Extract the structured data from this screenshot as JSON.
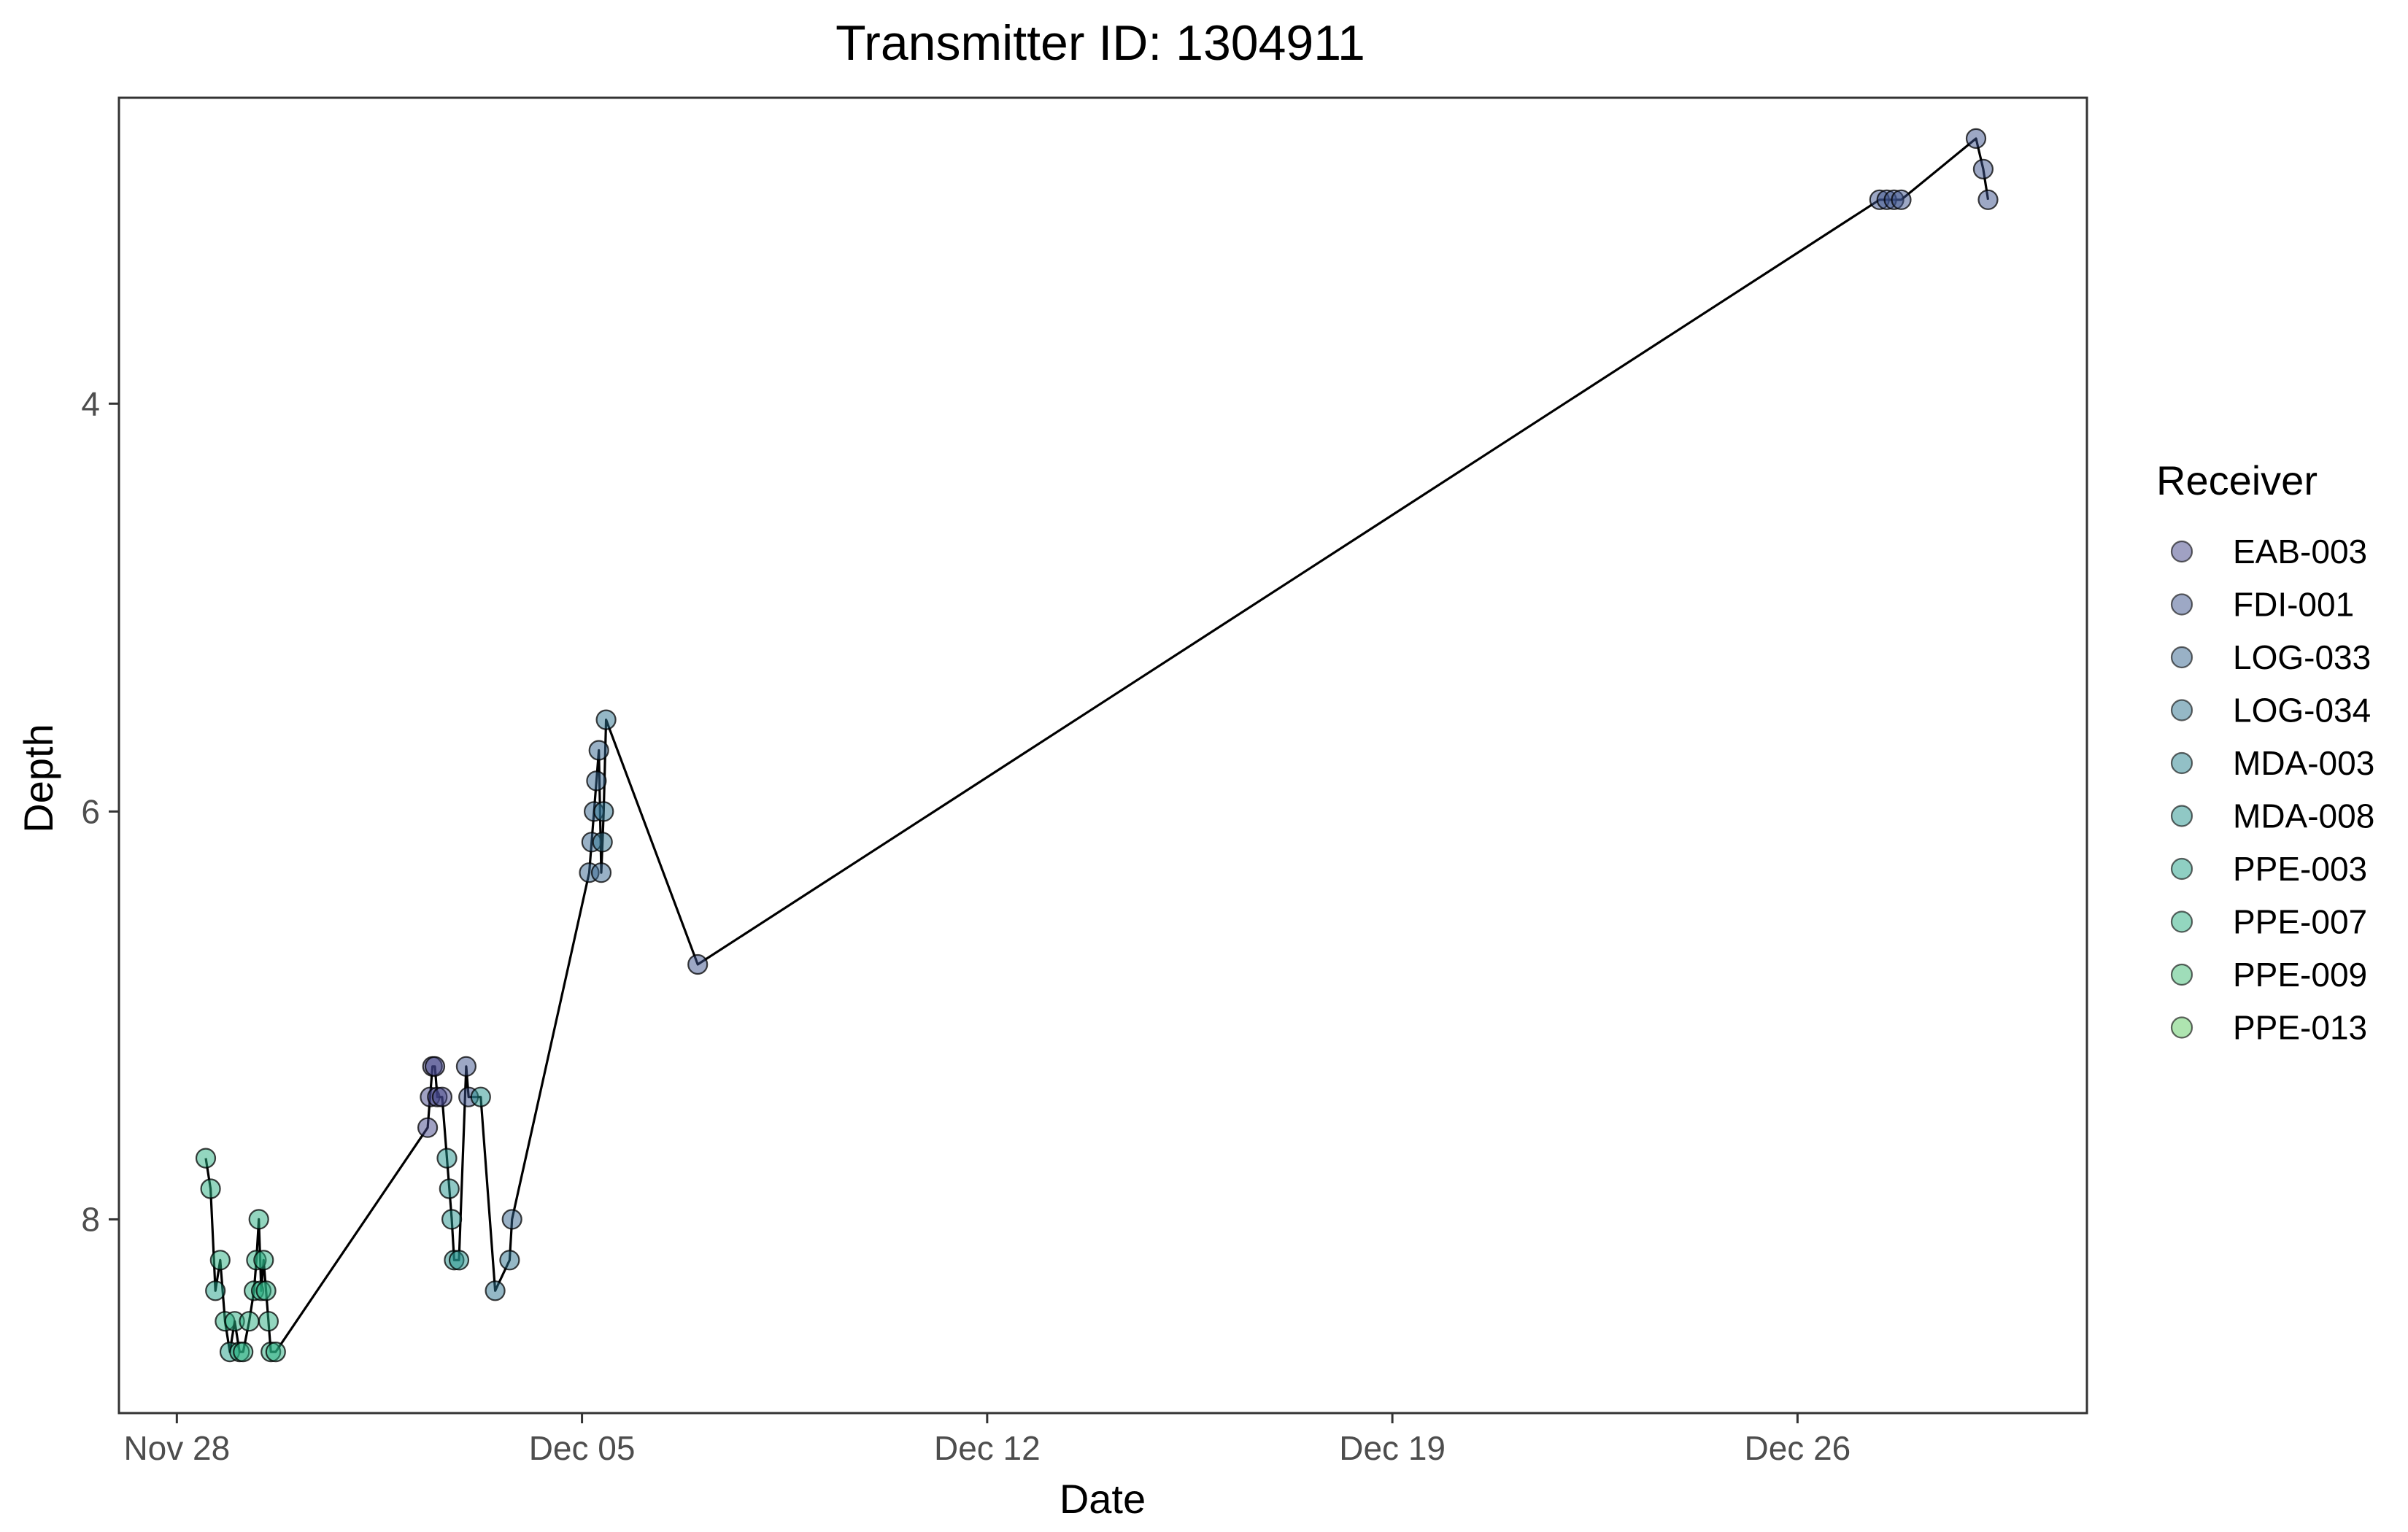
{
  "chart_data": {
    "type": "scatter",
    "title": "Transmitter ID: 1304911",
    "xlabel": "Date",
    "ylabel": "Depth",
    "y_reversed": true,
    "xlim": [
      "2023-11-27",
      "2023-12-31"
    ],
    "ylim": [
      2.5,
      8.95
    ],
    "x_ticks": [
      {
        "value": "2023-11-28",
        "label": "Nov 28"
      },
      {
        "value": "2023-12-05",
        "label": "Dec 05"
      },
      {
        "value": "2023-12-12",
        "label": "Dec 12"
      },
      {
        "value": "2023-12-19",
        "label": "Dec 19"
      },
      {
        "value": "2023-12-26",
        "label": "Dec 26"
      }
    ],
    "y_ticks": [
      {
        "value": 4,
        "label": "4"
      },
      {
        "value": 6,
        "label": "6"
      },
      {
        "value": 8,
        "label": "8"
      }
    ],
    "grid": false,
    "line_connects_points": true,
    "legend": {
      "title": "Receiver",
      "position": "right",
      "entries": [
        {
          "name": "EAB-003",
          "color": "#414487"
        },
        {
          "name": "FDI-001",
          "color": "#3b528b"
        },
        {
          "name": "LOG-033",
          "color": "#33638d"
        },
        {
          "name": "LOG-034",
          "color": "#2c728e"
        },
        {
          "name": "MDA-003",
          "color": "#26828e"
        },
        {
          "name": "MDA-008",
          "color": "#21918c"
        },
        {
          "name": "PPE-003",
          "color": "#1fa088"
        },
        {
          "name": "PPE-007",
          "color": "#28ae80"
        },
        {
          "name": "PPE-009",
          "color": "#3fbc73"
        },
        {
          "name": "PPE-013",
          "color": "#5ec962"
        }
      ]
    },
    "points": [
      {
        "x": "2023-11-28 12:00",
        "y": 7.7,
        "receiver": "PPE-007"
      },
      {
        "x": "2023-11-28 14:00",
        "y": 7.85,
        "receiver": "PPE-007"
      },
      {
        "x": "2023-11-28 16:00",
        "y": 8.35,
        "receiver": "PPE-003"
      },
      {
        "x": "2023-11-28 18:00",
        "y": 8.2,
        "receiver": "PPE-007"
      },
      {
        "x": "2023-11-28 20:00",
        "y": 8.5,
        "receiver": "PPE-007"
      },
      {
        "x": "2023-11-28 22:00",
        "y": 8.65,
        "receiver": "PPE-003"
      },
      {
        "x": "2023-11-29 00:00",
        "y": 8.5,
        "receiver": "PPE-007"
      },
      {
        "x": "2023-11-29 02:00",
        "y": 8.65,
        "receiver": "PPE-007"
      },
      {
        "x": "2023-11-29 03:30",
        "y": 8.65,
        "receiver": "PPE-007"
      },
      {
        "x": "2023-11-29 06:00",
        "y": 8.5,
        "receiver": "PPE-007"
      },
      {
        "x": "2023-11-29 08:00",
        "y": 8.35,
        "receiver": "PPE-007"
      },
      {
        "x": "2023-11-29 09:00",
        "y": 8.2,
        "receiver": "PPE-007"
      },
      {
        "x": "2023-11-29 10:00",
        "y": 8.0,
        "receiver": "PPE-007"
      },
      {
        "x": "2023-11-29 11:00",
        "y": 8.35,
        "receiver": "PPE-007"
      },
      {
        "x": "2023-11-29 12:00",
        "y": 8.2,
        "receiver": "PPE-007"
      },
      {
        "x": "2023-11-29 13:00",
        "y": 8.35,
        "receiver": "PPE-007"
      },
      {
        "x": "2023-11-29 14:00",
        "y": 8.5,
        "receiver": "PPE-007"
      },
      {
        "x": "2023-11-29 15:00",
        "y": 8.65,
        "receiver": "PPE-007"
      },
      {
        "x": "2023-11-29 17:00",
        "y": 8.65,
        "receiver": "PPE-007"
      },
      {
        "x": "2023-12-02 08:00",
        "y": 7.55,
        "receiver": "EAB-003"
      },
      {
        "x": "2023-12-02 09:00",
        "y": 7.4,
        "receiver": "EAB-003"
      },
      {
        "x": "2023-12-02 10:00",
        "y": 7.25,
        "receiver": "EAB-003"
      },
      {
        "x": "2023-12-02 11:00",
        "y": 7.25,
        "receiver": "EAB-003"
      },
      {
        "x": "2023-12-02 12:00",
        "y": 7.4,
        "receiver": "EAB-003"
      },
      {
        "x": "2023-12-02 14:00",
        "y": 7.4,
        "receiver": "EAB-003"
      },
      {
        "x": "2023-12-02 16:00",
        "y": 7.7,
        "receiver": "MDA-008"
      },
      {
        "x": "2023-12-02 17:00",
        "y": 7.85,
        "receiver": "MDA-008"
      },
      {
        "x": "2023-12-02 18:00",
        "y": 8.0,
        "receiver": "MDA-008"
      },
      {
        "x": "2023-12-02 19:00",
        "y": 8.2,
        "receiver": "MDA-008"
      },
      {
        "x": "2023-12-02 21:00",
        "y": 8.2,
        "receiver": "MDA-008"
      },
      {
        "x": "2023-12-03 00:00",
        "y": 7.25,
        "receiver": "FDI-001"
      },
      {
        "x": "2023-12-03 01:00",
        "y": 7.4,
        "receiver": "FDI-001"
      },
      {
        "x": "2023-12-03 06:00",
        "y": 7.4,
        "receiver": "MDA-008"
      },
      {
        "x": "2023-12-03 12:00",
        "y": 8.35,
        "receiver": "LOG-034"
      },
      {
        "x": "2023-12-03 18:00",
        "y": 8.2,
        "receiver": "LOG-034"
      },
      {
        "x": "2023-12-03 19:00",
        "y": 8.0,
        "receiver": "LOG-033"
      },
      {
        "x": "2023-12-05 03:00",
        "y": 6.3,
        "receiver": "LOG-033"
      },
      {
        "x": "2023-12-05 04:00",
        "y": 6.15,
        "receiver": "LOG-033"
      },
      {
        "x": "2023-12-05 05:00",
        "y": 6.0,
        "receiver": "LOG-033"
      },
      {
        "x": "2023-12-05 06:00",
        "y": 5.85,
        "receiver": "LOG-033"
      },
      {
        "x": "2023-12-05 07:00",
        "y": 5.7,
        "receiver": "LOG-033"
      },
      {
        "x": "2023-12-05 08:00",
        "y": 6.3,
        "receiver": "LOG-033"
      },
      {
        "x": "2023-12-05 08:30",
        "y": 6.15,
        "receiver": "LOG-034"
      },
      {
        "x": "2023-12-05 09:00",
        "y": 6.0,
        "receiver": "LOG-034"
      },
      {
        "x": "2023-12-05 10:00",
        "y": 5.55,
        "receiver": "LOG-034"
      },
      {
        "x": "2023-12-07 00:00",
        "y": 6.75,
        "receiver": "FDI-001"
      },
      {
        "x": "2023-12-27 10:00",
        "y": 3.0,
        "receiver": "FDI-001"
      },
      {
        "x": "2023-12-27 13:00",
        "y": 3.0,
        "receiver": "FDI-001"
      },
      {
        "x": "2023-12-27 16:00",
        "y": 3.0,
        "receiver": "FDI-001"
      },
      {
        "x": "2023-12-27 19:00",
        "y": 3.0,
        "receiver": "FDI-001"
      },
      {
        "x": "2023-12-29 02:00",
        "y": 2.7,
        "receiver": "FDI-001"
      },
      {
        "x": "2023-12-29 05:00",
        "y": 2.85,
        "receiver": "FDI-001"
      },
      {
        "x": "2023-12-29 07:00",
        "y": 3.0,
        "receiver": "FDI-001"
      }
    ]
  }
}
